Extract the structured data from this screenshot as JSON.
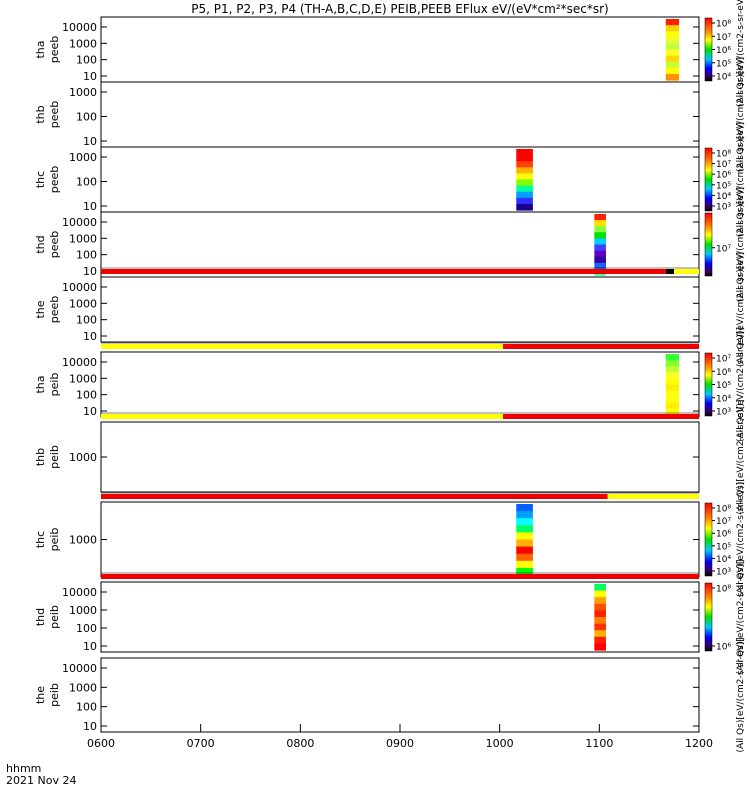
{
  "title": "P5, P1, P2, P3, P4 (TH-A,B,C,D,E) PEIB,PEEB EFlux eV/(eV*cm²*sec*sr)",
  "footer": {
    "unit_label": "hhmm",
    "date_label": "2021 Nov 24"
  },
  "chart_data": {
    "type": "heatmap",
    "x_ticks": [
      "0600",
      "0700",
      "0800",
      "0900",
      "1000",
      "1100",
      "1200"
    ],
    "x_range_hours": [
      6,
      12
    ],
    "y_scale": "log",
    "panels": [
      {
        "name": "tha_peeb",
        "label_line1": "tha",
        "label_line2": "peeb",
        "y_ticks": [
          "10",
          "100",
          "1000",
          "10000"
        ],
        "colorbar": {
          "ticks": [
            "10⁴",
            "10⁵",
            "10⁶",
            "10⁷",
            "10⁸"
          ],
          "unit": "(All Qs)[eV/(cm2-s-sr-eV)]"
        },
        "data_blocks": [
          {
            "start": "11:40",
            "end": "11:48",
            "scheme": "tha"
          }
        ]
      },
      {
        "name": "thb_peeb",
        "label_line1": "thb",
        "label_line2": "peeb",
        "y_ticks": [
          "10",
          "100",
          "1000"
        ],
        "colorbar": null,
        "unit_label": "(All Qs)[eV/(cm2-s-sr-eV)]",
        "data_blocks": []
      },
      {
        "name": "thc_peeb",
        "label_line1": "thc",
        "label_line2": "peeb",
        "y_ticks": [
          "10",
          "100",
          "1000"
        ],
        "colorbar": {
          "ticks": [
            "10³",
            "10⁴",
            "10⁵",
            "10⁶",
            "10⁷",
            "10⁸"
          ],
          "unit": "(All Qs)[eV/(cm2-s-sr-eV)]"
        },
        "data_blocks": [
          {
            "start": "10:10",
            "end": "10:20",
            "scheme": "thc"
          }
        ]
      },
      {
        "name": "thd_peeb",
        "label_line1": "thd",
        "label_line2": "peeb",
        "y_ticks": [
          "10",
          "100",
          "1000",
          "10000"
        ],
        "colorbar": {
          "ticks": [
            "10⁷"
          ],
          "unit": "(All Qs)[eV/(cm2-s-sr-eV)]"
        },
        "data_blocks": [
          {
            "start": "10:57",
            "end": "11:04",
            "scheme": "thd"
          }
        ]
      },
      {
        "name": "the_peeb",
        "label_line1": "the",
        "label_line2": "peeb",
        "y_ticks": [
          "10",
          "100",
          "1000",
          "10000"
        ],
        "colorbar": null,
        "unit_label": "(All Qs)[eV/(cm2-s-sr-eV)]",
        "data_blocks": [],
        "status_bar": [
          {
            "start": "06:00",
            "end": "11:40",
            "color": "#ee0000"
          },
          {
            "start": "11:40",
            "end": "11:45",
            "color": "#000000"
          },
          {
            "start": "11:45",
            "end": "12:00",
            "color": "#ffff00"
          }
        ]
      },
      {
        "name": "tha_peib",
        "label_line1": "tha",
        "label_line2": "peib",
        "y_ticks": [
          "10",
          "100",
          "1000",
          "10000"
        ],
        "colorbar": {
          "ticks": [
            "10³",
            "10⁴",
            "10⁵",
            "10⁶",
            "10⁷"
          ],
          "unit": "(All Qs)[eV/(cm2-s-sr-eV)]"
        },
        "data_blocks": [
          {
            "start": "11:40",
            "end": "11:48",
            "scheme": "tha_i"
          }
        ],
        "status_bar": [
          {
            "start": "06:00",
            "end": "10:02",
            "color": "#ffff00"
          },
          {
            "start": "10:02",
            "end": "12:00",
            "color": "#ee0000"
          }
        ]
      },
      {
        "name": "thb_peib",
        "label_line1": "thb",
        "label_line2": "peib",
        "y_ticks": [
          "1000"
        ],
        "colorbar": null,
        "unit_label": "(All Qs)[eV/(cm2-s-sr-eV)]",
        "data_blocks": [],
        "status_bar": [
          {
            "start": "06:00",
            "end": "10:02",
            "color": "#ffff00"
          },
          {
            "start": "10:02",
            "end": "12:00",
            "color": "#ee0000"
          }
        ]
      },
      {
        "name": "thc_peib",
        "label_line1": "thc",
        "label_line2": "peib",
        "y_ticks": [
          "1000"
        ],
        "colorbar": {
          "ticks": [
            "10³",
            "10⁴",
            "10⁵",
            "10⁶",
            "10⁷",
            "10⁸"
          ],
          "unit": "(All Qs)[eV/(cm2-s-sr-eV)]"
        },
        "data_blocks": [
          {
            "start": "10:10",
            "end": "10:20",
            "scheme": "thc_i"
          }
        ],
        "status_bar": [
          {
            "start": "06:00",
            "end": "11:05",
            "color": "#ee0000"
          },
          {
            "start": "11:05",
            "end": "12:00",
            "color": "#ffff00"
          }
        ]
      },
      {
        "name": "thd_peib",
        "label_line1": "thd",
        "label_line2": "peib",
        "y_ticks": [
          "10",
          "100",
          "1000",
          "10000"
        ],
        "colorbar": {
          "ticks": [
            "10⁶",
            "10⁸"
          ],
          "unit": "(All Qs)[eV/(cm2-s-sr-eV)]"
        },
        "data_blocks": [
          {
            "start": "10:57",
            "end": "11:04",
            "scheme": "thd_i"
          }
        ],
        "status_bar": [
          {
            "start": "06:00",
            "end": "12:00",
            "color": "#ee0000"
          }
        ]
      },
      {
        "name": "the_peib",
        "label_line1": "the",
        "label_line2": "peib",
        "y_ticks": [
          "10",
          "100",
          "1000",
          "10000"
        ],
        "colorbar": null,
        "unit_label": "(All Qs)[eV/(cm2-s-sr-eV)]",
        "data_blocks": []
      }
    ]
  }
}
